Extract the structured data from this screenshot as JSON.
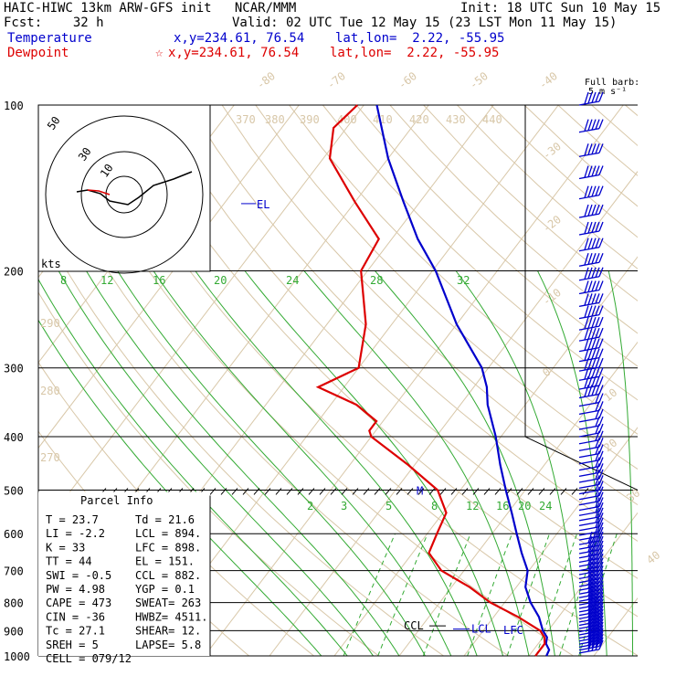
{
  "header": {
    "title": "HAIC-HIWC 13km ARW-GFS init   NCAR/MMM",
    "init": "Init: 18 UTC Sun 10 May 15",
    "fcst": "Fcst:    32 h",
    "valid": "Valid: 02 UTC Tue 12 May 15 (23 LST Mon 11 May 15)",
    "temperature_label": "Temperature",
    "temperature_loc": "x,y=234.61, 76.54    lat,lon=  2.22, -55.95",
    "dewpoint_label": "Dewpoint",
    "dewpoint_loc": "x,y=234.61, 76.54    lat,lon=  2.22, -55.95",
    "barb_key": "Full barb:",
    "barb_key_units": "5 m s⁻¹"
  },
  "chart_data": {
    "type": "line",
    "title": "",
    "y_axis": {
      "label": "",
      "units": "hPa",
      "scale": "log",
      "ticks": [
        100,
        200,
        300,
        400,
        500,
        600,
        700,
        800,
        900,
        1000
      ]
    },
    "isotherm_labels": [
      "-80",
      "-70",
      "-60",
      "-50",
      "-40",
      "-30",
      "-20",
      "-10",
      "0",
      "10",
      "20",
      "30",
      "40"
    ],
    "dry_adiabat_labels": [
      "270",
      "280",
      "290",
      "370",
      "380",
      "390",
      "400",
      "410",
      "420",
      "430",
      "440"
    ],
    "moist_adiabat_labels": [
      "8",
      "12",
      "16",
      "20",
      "24",
      "28",
      "32"
    ],
    "mixing_ratio_labels": [
      "2",
      "3",
      "5",
      "8",
      "12",
      "16",
      "20",
      "24"
    ],
    "series": [
      {
        "name": "Temperature",
        "color": "#0000cc",
        "points": [
          [
            1000,
            22.7
          ],
          [
            975,
            22.4
          ],
          [
            950,
            21.2
          ],
          [
            925,
            20.6
          ],
          [
            900,
            19.2
          ],
          [
            850,
            17.0
          ],
          [
            800,
            14.0
          ],
          [
            750,
            11.4
          ],
          [
            700,
            9.8
          ],
          [
            650,
            6.8
          ],
          [
            600,
            3.8
          ],
          [
            550,
            0.6
          ],
          [
            500,
            -3.0
          ],
          [
            450,
            -6.8
          ],
          [
            400,
            -10.8
          ],
          [
            350,
            -15.8
          ],
          [
            325,
            -18.0
          ],
          [
            300,
            -21.0
          ],
          [
            250,
            -30.0
          ],
          [
            200,
            -39.5
          ],
          [
            175,
            -46.0
          ],
          [
            150,
            -52.5
          ],
          [
            125,
            -60.0
          ],
          [
            100,
            -68.0
          ]
        ]
      },
      {
        "name": "Dewpoint",
        "color": "#dd0000",
        "points": [
          [
            1000,
            21.0
          ],
          [
            950,
            21.0
          ],
          [
            925,
            20.2
          ],
          [
            900,
            18.8
          ],
          [
            850,
            13.8
          ],
          [
            800,
            7.8
          ],
          [
            750,
            2.8
          ],
          [
            700,
            -3.5
          ],
          [
            650,
            -7.5
          ],
          [
            600,
            -8.5
          ],
          [
            550,
            -9.5
          ],
          [
            500,
            -13.5
          ],
          [
            450,
            -21.0
          ],
          [
            400,
            -30.0
          ],
          [
            390,
            -31.0
          ],
          [
            375,
            -31.0
          ],
          [
            350,
            -36.0
          ],
          [
            325,
            -44.0
          ],
          [
            300,
            -40.0
          ],
          [
            250,
            -44.0
          ],
          [
            200,
            -51.0
          ],
          [
            175,
            -52.0
          ],
          [
            150,
            -60.0
          ],
          [
            125,
            -69.0
          ],
          [
            110,
            -72.0
          ],
          [
            100,
            -71.0
          ]
        ]
      }
    ],
    "level_labels": {
      "EL": 151,
      "CCL": 882,
      "LCL": 894,
      "LFC": 898,
      "M": 500
    },
    "wind_barbs": "right-side column, speeds shown in m/s",
    "hodograph": {
      "rings_label": "kts",
      "ring_labels": [
        "10",
        "30",
        "50"
      ]
    },
    "parcel_info": {
      "title": "Parcel Info",
      "rows": [
        [
          "T    =   23.7",
          "Td =  21.6"
        ],
        [
          "LI   =   -2.2",
          "LCL =  894."
        ],
        [
          "K    =     33",
          "LFC =  898."
        ],
        [
          "TT   =     44",
          "EL  =  151."
        ],
        [
          "SWI  =   -0.5",
          "CCL =  882."
        ],
        [
          "PW   =   4.98",
          "YGP =   0.1"
        ],
        [
          "CAPE =    473",
          "SWEAT=  263"
        ],
        [
          "CIN  =    -36",
          "HWBZ= 4511."
        ],
        [
          "Tc   =   27.1",
          "SHEAR=  12."
        ],
        [
          "SREH =      5",
          "LAPSE=  5.8"
        ],
        [
          "CELL = 079/12",
          ""
        ]
      ]
    }
  }
}
